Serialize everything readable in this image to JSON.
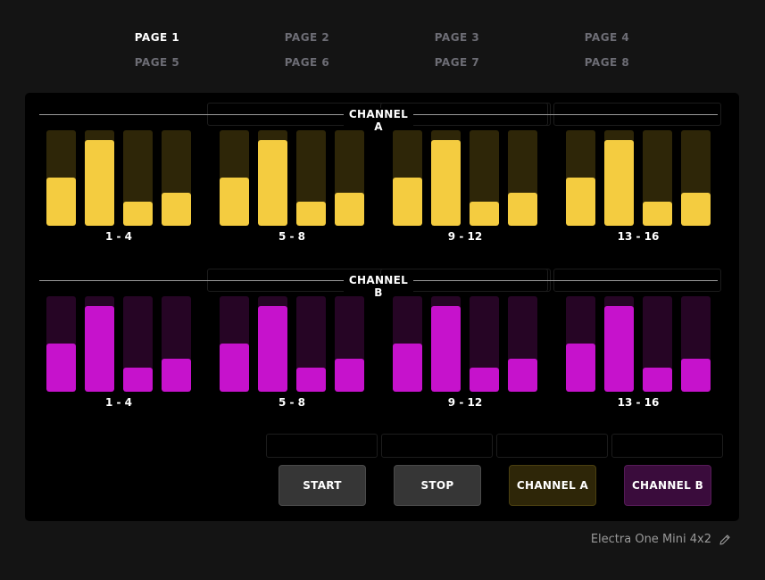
{
  "pages": [
    {
      "label": "PAGE 1",
      "active": true
    },
    {
      "label": "PAGE 2",
      "active": false
    },
    {
      "label": "PAGE 3",
      "active": false
    },
    {
      "label": "PAGE 4",
      "active": false
    },
    {
      "label": "PAGE 5",
      "active": false
    },
    {
      "label": "PAGE 6",
      "active": false
    },
    {
      "label": "PAGE 7",
      "active": false
    },
    {
      "label": "PAGE 8",
      "active": false
    }
  ],
  "channels": [
    {
      "title": "CHANNEL A",
      "fill_color": "#f4cc40",
      "track_color": "#2e2608",
      "groups": [
        {
          "label": "1 - 4",
          "levels": [
            0.5,
            0.9,
            0.25,
            0.35
          ]
        },
        {
          "label": "5 - 8",
          "levels": [
            0.5,
            0.9,
            0.25,
            0.35
          ]
        },
        {
          "label": "9 - 12",
          "levels": [
            0.5,
            0.9,
            0.25,
            0.35
          ]
        },
        {
          "label": "13 - 16",
          "levels": [
            0.5,
            0.9,
            0.25,
            0.35
          ]
        }
      ]
    },
    {
      "title": "CHANNEL B",
      "fill_color": "#c612cc",
      "track_color": "#260525",
      "groups": [
        {
          "label": "1 - 4",
          "levels": [
            0.5,
            0.9,
            0.25,
            0.35
          ]
        },
        {
          "label": "5 - 8",
          "levels": [
            0.5,
            0.9,
            0.25,
            0.35
          ]
        },
        {
          "label": "9 - 12",
          "levels": [
            0.5,
            0.9,
            0.25,
            0.35
          ]
        },
        {
          "label": "13 - 16",
          "levels": [
            0.5,
            0.9,
            0.25,
            0.35
          ]
        }
      ]
    }
  ],
  "buttons": [
    {
      "label": "START",
      "bg": "#363636",
      "border": "#4a4a4a"
    },
    {
      "label": "STOP",
      "bg": "#363636",
      "border": "#4a4a4a"
    },
    {
      "label": "CHANNEL A",
      "bg": "#2e2608",
      "border": "#4a3f10"
    },
    {
      "label": "CHANNEL B",
      "bg": "#3a0c3c",
      "border": "#561b58"
    }
  ],
  "footer": {
    "device_name": "Electra One Mini 4x2",
    "edit_icon": "pencil-icon"
  }
}
